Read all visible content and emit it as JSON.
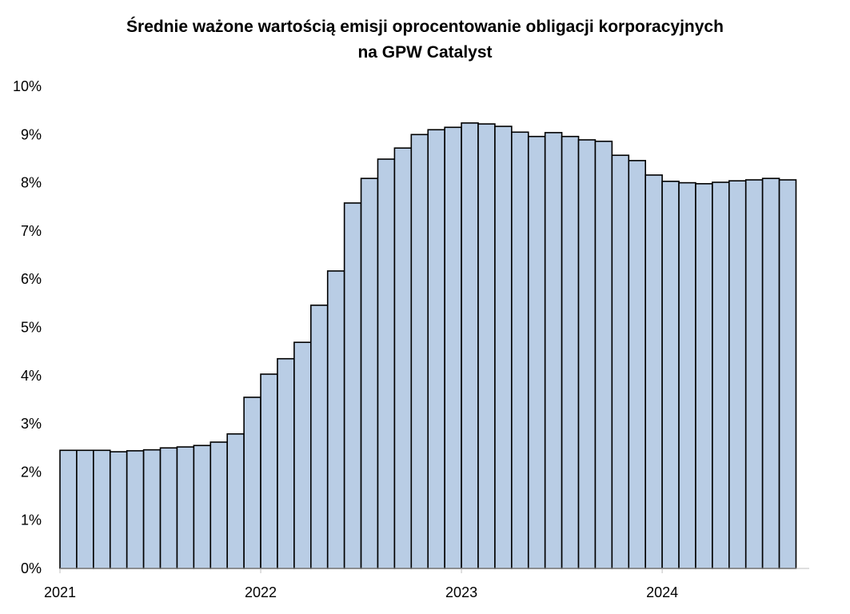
{
  "chart_data": {
    "type": "bar",
    "title_line1": "Średnie ważone wartością emisji oprocentowanie obligacji korporacyjnych",
    "title_line2": "na GPW Catalyst",
    "xlabel": "",
    "ylabel": "",
    "ylim": [
      0,
      10
    ],
    "y_ticks": [
      "0%",
      "1%",
      "2%",
      "3%",
      "4%",
      "5%",
      "6%",
      "7%",
      "8%",
      "9%",
      "10%"
    ],
    "x_ticks": [
      "2021",
      "2022",
      "2023",
      "2024"
    ],
    "grid": false,
    "bar_color": "#b9cde5",
    "bar_edge_color": "#000000",
    "values": [
      2.45,
      2.45,
      2.45,
      2.42,
      2.44,
      2.46,
      2.5,
      2.52,
      2.55,
      2.62,
      2.79,
      3.55,
      4.03,
      4.35,
      4.69,
      5.46,
      6.17,
      7.58,
      8.09,
      8.49,
      8.72,
      9.0,
      9.1,
      9.15,
      9.24,
      9.22,
      9.17,
      9.05,
      8.96,
      9.04,
      8.96,
      8.89,
      8.86,
      8.57,
      8.46,
      8.16,
      8.03,
      8.0,
      7.98,
      8.01,
      8.04,
      8.06,
      8.09,
      8.06
    ]
  }
}
